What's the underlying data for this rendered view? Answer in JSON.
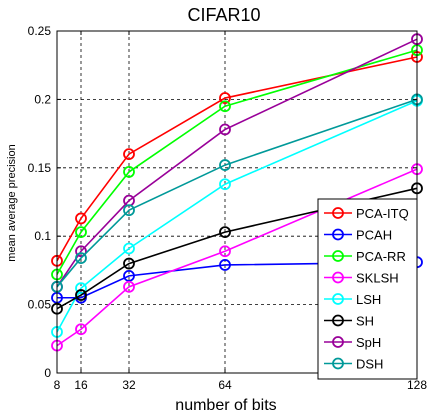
{
  "chart_data": {
    "type": "line",
    "title": "CIFAR10",
    "xlabel": "number of bits",
    "ylabel": "mean average precision",
    "x": [
      8,
      16,
      32,
      64,
      128
    ],
    "x_ticks": [
      8,
      16,
      32,
      64,
      128
    ],
    "x_tick_labels": [
      "8",
      "16",
      "32",
      "64",
      "128"
    ],
    "xlim": [
      8,
      128
    ],
    "ylim": [
      0,
      0.25
    ],
    "y_ticks": [
      0,
      0.05,
      0.1,
      0.15,
      0.2,
      0.25
    ],
    "y_tick_labels": [
      "0",
      "0.05",
      "0.1",
      "0.15",
      "0.2",
      "0.25"
    ],
    "grid": true,
    "grid_style": "dashed",
    "legend_position": "right",
    "marker": "circle",
    "series": [
      {
        "name": "PCA-ITQ",
        "color": "#ff0000",
        "values": [
          0.082,
          0.113,
          0.16,
          0.201,
          0.231
        ]
      },
      {
        "name": "PCAH",
        "color": "#0000ff",
        "values": [
          0.055,
          0.055,
          0.071,
          0.079,
          0.081
        ]
      },
      {
        "name": "PCA-RR",
        "color": "#00ff00",
        "values": [
          0.072,
          0.103,
          0.147,
          0.195,
          0.236
        ]
      },
      {
        "name": "SKLSH",
        "color": "#ff00ff",
        "values": [
          0.02,
          0.032,
          0.063,
          0.089,
          0.149
        ]
      },
      {
        "name": "LSH",
        "color": "#00ffff",
        "values": [
          0.03,
          0.062,
          0.091,
          0.138,
          0.199
        ]
      },
      {
        "name": "SH",
        "color": "#000000",
        "values": [
          0.047,
          0.057,
          0.08,
          0.103,
          0.135
        ]
      },
      {
        "name": "SpH",
        "color": "#990099",
        "values": [
          0.063,
          0.089,
          0.126,
          0.178,
          0.244
        ]
      },
      {
        "name": "DSH",
        "color": "#009999",
        "values": [
          0.063,
          0.084,
          0.119,
          0.152,
          0.2
        ]
      }
    ]
  }
}
